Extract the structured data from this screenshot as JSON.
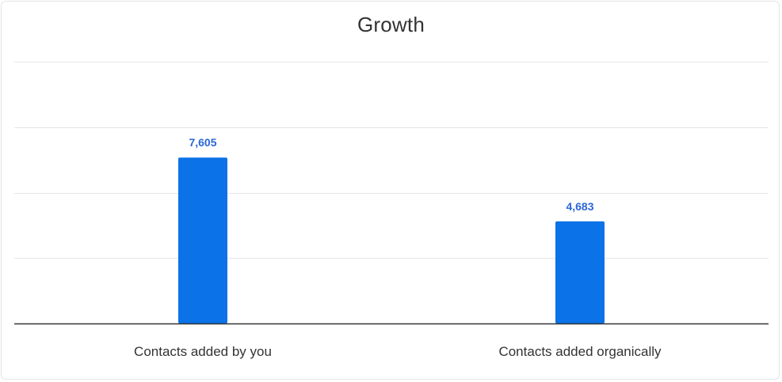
{
  "chart_data": {
    "type": "bar",
    "title": "Growth",
    "categories": [
      "Contacts added by you",
      "Contacts added organically"
    ],
    "values": [
      7605,
      4683
    ],
    "value_labels": [
      "7,605",
      "4,683"
    ],
    "ylim": [
      0,
      12000
    ],
    "grid": true,
    "xlabel": "",
    "ylabel": "",
    "bar_color": "#0b72e7",
    "label_color": "#2a66d6"
  }
}
